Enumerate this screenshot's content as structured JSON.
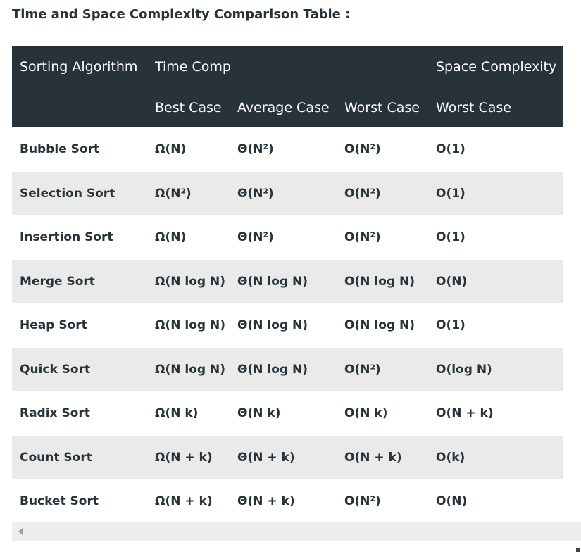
{
  "title": "Time and Space Complexity Comparison Table :",
  "header": {
    "row1": [
      "Sorting Algorithm",
      "Time Complexity",
      "",
      "",
      "Space Complexity"
    ],
    "row2": [
      "",
      "Best Case",
      "Average Case",
      "Worst Case",
      "Worst Case"
    ]
  },
  "rows": [
    [
      "Bubble Sort",
      "Ω(N)",
      "Θ(N²)",
      "O(N²)",
      "O(1)"
    ],
    [
      "Selection Sort",
      "Ω(N²)",
      "Θ(N²)",
      "O(N²)",
      "O(1)"
    ],
    [
      "Insertion Sort",
      "Ω(N)",
      "Θ(N²)",
      "O(N²)",
      "O(1)"
    ],
    [
      "Merge Sort",
      "Ω(N log N)",
      "Θ(N log N)",
      "O(N log N)",
      "O(N)"
    ],
    [
      "Heap Sort",
      "Ω(N log N)",
      "Θ(N log N)",
      "O(N log N)",
      "O(1)"
    ],
    [
      "Quick Sort",
      "Ω(N log N)",
      "Θ(N log N)",
      "O(N²)",
      "O(log N)"
    ],
    [
      "Radix Sort",
      "Ω(N k)",
      "Θ(N k)",
      "O(N k)",
      "O(N + k)"
    ],
    [
      "Count Sort",
      "Ω(N + k)",
      "Θ(N + k)",
      "O(N + k)",
      "O(k)"
    ],
    [
      "Bucket Sort",
      "Ω(N + k)",
      "Θ(N + k)",
      "O(N²)",
      "O(N)"
    ]
  ]
}
